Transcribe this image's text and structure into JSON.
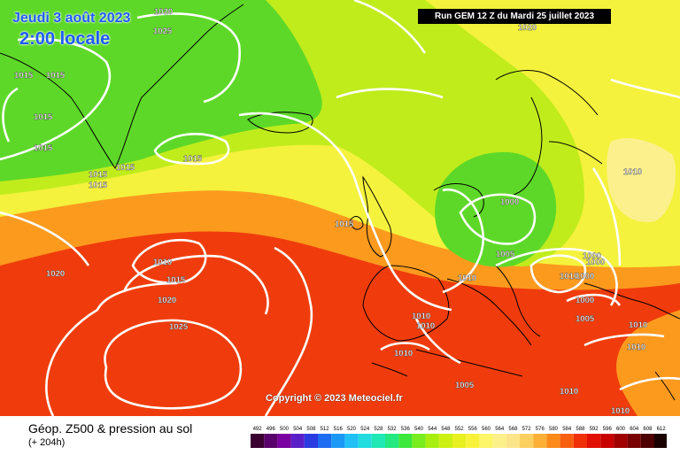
{
  "header": {
    "date": "Jeudi 3 août 2023",
    "time": "2:00 locale",
    "run": "Run GEM 12 Z du Mardi 25 juillet 2023"
  },
  "copyright": "Copyright © 2023 Meteociel.fr",
  "footer": {
    "title": "Géop. Z500 & pression au sol",
    "subtitle": "(+ 204h)"
  },
  "scale": {
    "labels": [
      "492",
      "496",
      "500",
      "504",
      "508",
      "512",
      "516",
      "520",
      "524",
      "528",
      "532",
      "536",
      "540",
      "544",
      "548",
      "552",
      "556",
      "560",
      "564",
      "568",
      "572",
      "576",
      "580",
      "584",
      "588",
      "592",
      "596",
      "600",
      "604",
      "608",
      "612"
    ],
    "colors": [
      "#3a0030",
      "#5a006a",
      "#7a00a0",
      "#5a20c8",
      "#2a3ce0",
      "#1e6cf0",
      "#1c98f5",
      "#22c0f5",
      "#22dce0",
      "#20e8b4",
      "#24e880",
      "#3ce83c",
      "#78ec1e",
      "#a8ee10",
      "#ccf012",
      "#e8f020",
      "#f8f23a",
      "#fcf668",
      "#fcf08c",
      "#fce48a",
      "#fcd060",
      "#fcb038",
      "#fc8a1a",
      "#f86010",
      "#f03008",
      "#e01004",
      "#c80000",
      "#a00000",
      "#780000",
      "#4e0000",
      "#1a0000"
    ]
  },
  "map_colors": {
    "green": "#5ed828",
    "yellow_green": "#c0ec1c",
    "yellow": "#f4f23c",
    "orange": "#fc9a1e",
    "red": "#f03c0c",
    "land_lines": "#000000",
    "isobar": "#ffffff"
  },
  "pressure_labels": [
    "1020",
    "1025",
    "1015",
    "1015",
    "1015",
    "1015",
    "1015",
    "1015",
    "1015",
    "1015",
    "1020",
    "1010",
    "1015",
    "1020",
    "1025",
    "1015",
    "1010",
    "1020",
    "1010",
    "1000",
    "1005",
    "1000",
    "1000",
    "1000",
    "1010",
    "1010",
    "1010",
    "1010",
    "1005",
    "1000",
    "1005",
    "1010",
    "1010",
    "1010",
    "1010"
  ]
}
